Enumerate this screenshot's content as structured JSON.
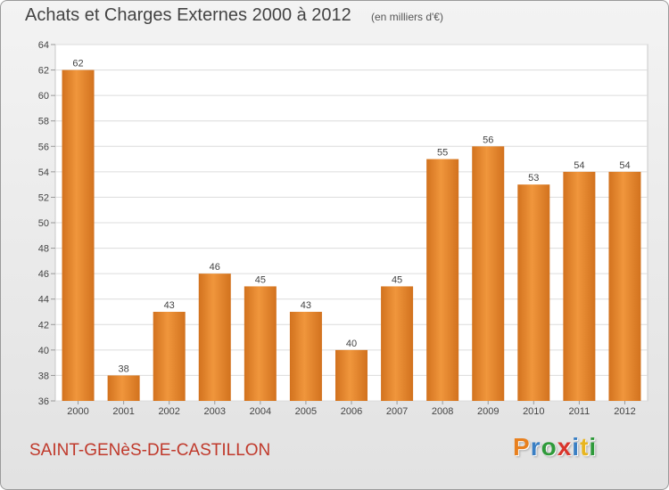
{
  "header": {
    "title": "Achats et Charges Externes 2000 à 2012",
    "subtitle": "(en milliers d'€)"
  },
  "footer": {
    "commune": "SAINT-GENèS-DE-CASTILLON",
    "logo": {
      "letters": [
        "P",
        "r",
        "o",
        "x",
        "i",
        "t",
        "i"
      ],
      "colors": [
        "#e8801e",
        "#3a7fc4",
        "#2e9a3a",
        "#d9342b",
        "#3a7fc4",
        "#e8b51e",
        "#2e9a3a"
      ]
    }
  },
  "chart_data": {
    "type": "bar",
    "categories": [
      "2000",
      "2001",
      "2002",
      "2003",
      "2004",
      "2005",
      "2006",
      "2007",
      "2008",
      "2009",
      "2010",
      "2011",
      "2012"
    ],
    "values": [
      62,
      38,
      43,
      46,
      45,
      43,
      40,
      45,
      55,
      56,
      53,
      54,
      54
    ],
    "data_labels": [
      "62",
      "38",
      "43",
      "46",
      "45",
      "43",
      "40",
      "45",
      "55",
      "56",
      "53",
      "54",
      "54"
    ],
    "ylim": [
      36,
      64
    ],
    "yticks": [
      36,
      38,
      40,
      42,
      44,
      46,
      48,
      50,
      52,
      54,
      56,
      58,
      60,
      62,
      64
    ],
    "ytick_labels": [
      "36",
      "38",
      "40",
      "42",
      "44",
      "46",
      "48",
      "50",
      "52",
      "54",
      "56",
      "58",
      "60",
      "62",
      "64"
    ],
    "grid": true,
    "bar_color": "#f0963c",
    "bar_color_dark": "#d2721e"
  }
}
